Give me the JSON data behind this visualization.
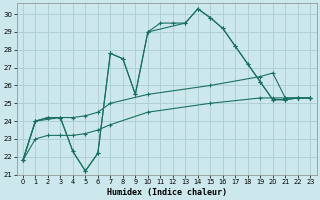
{
  "xlabel": "Humidex (Indice chaleur)",
  "bg_color": "#cde8ec",
  "grid_color": "#b0d0d8",
  "line_color": "#1a7060",
  "xlim": [
    -0.5,
    23.5
  ],
  "ylim": [
    21,
    30.6
  ],
  "xticks": [
    0,
    1,
    2,
    3,
    4,
    5,
    6,
    7,
    8,
    9,
    10,
    11,
    12,
    13,
    14,
    15,
    16,
    17,
    18,
    19,
    20,
    21,
    22,
    23
  ],
  "yticks": [
    21,
    22,
    23,
    24,
    25,
    26,
    27,
    28,
    29,
    30
  ],
  "line1_x": [
    0,
    1,
    2,
    3,
    4,
    5,
    6,
    7,
    8,
    9,
    10,
    11,
    12,
    13,
    14,
    15,
    16,
    17,
    18,
    19,
    20,
    21,
    22,
    23
  ],
  "line1_y": [
    21.8,
    24.0,
    24.2,
    24.2,
    22.3,
    21.2,
    22.2,
    27.8,
    27.5,
    25.5,
    29.0,
    29.5,
    29.5,
    29.5,
    30.3,
    29.8,
    29.2,
    28.2,
    27.2,
    26.2,
    25.2,
    25.2,
    25.3,
    25.3
  ],
  "line2_x": [
    0,
    1,
    3,
    4,
    5,
    6,
    7,
    8,
    9,
    10,
    13,
    14,
    15,
    16,
    17,
    18,
    19,
    20,
    21,
    22,
    23
  ],
  "line2_y": [
    21.8,
    24.0,
    24.2,
    22.3,
    21.2,
    22.2,
    27.8,
    27.5,
    25.5,
    29.0,
    29.5,
    30.3,
    29.8,
    29.2,
    28.2,
    27.2,
    26.2,
    25.2,
    25.2,
    25.3,
    25.3
  ],
  "line3_x": [
    0,
    1,
    2,
    3,
    4,
    5,
    6,
    7,
    10,
    15,
    19,
    20,
    21,
    22,
    23
  ],
  "line3_y": [
    21.8,
    24.0,
    24.2,
    24.2,
    24.2,
    24.3,
    24.5,
    25.0,
    25.5,
    26.0,
    26.5,
    26.7,
    25.3,
    25.3,
    25.3
  ],
  "line4_x": [
    0,
    1,
    2,
    3,
    4,
    5,
    6,
    7,
    10,
    15,
    19,
    20,
    21,
    22,
    23
  ],
  "line4_y": [
    21.8,
    23.0,
    23.2,
    23.2,
    23.2,
    23.3,
    23.5,
    23.8,
    24.5,
    25.0,
    25.3,
    25.3,
    25.3,
    25.3,
    25.3
  ]
}
